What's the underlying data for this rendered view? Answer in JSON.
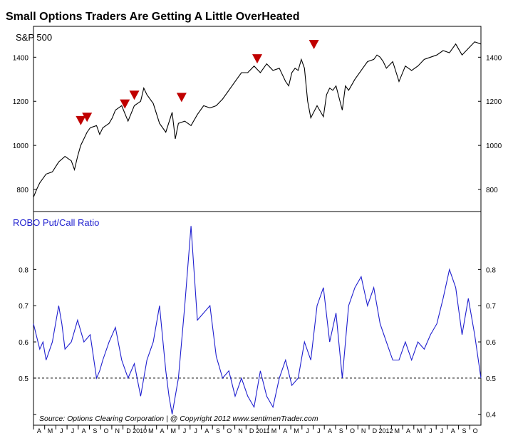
{
  "title": "Small Options Traders Are Getting A Little OverHeated",
  "source_note": "Source:  Options Clearing Corporation  |  @ Copyright 2012  www.sentimenTrader.com",
  "chart_data": [
    {
      "type": "line",
      "title": "S&P 500",
      "y_ticks": [
        800,
        1000,
        1200,
        1400
      ],
      "ylim": [
        700,
        1540
      ],
      "series": [
        {
          "name": "S&P 500",
          "color": "#000000",
          "x": [
            0,
            0.5,
            1,
            2,
            3,
            4,
            5,
            6,
            6.5,
            7,
            7.5,
            8,
            8.5,
            9,
            10,
            10.5,
            11,
            11.5,
            12,
            12.5,
            13,
            14,
            15,
            16,
            17,
            17.5,
            18,
            19,
            20,
            21,
            22,
            22.5,
            23,
            24,
            25,
            26,
            27,
            28,
            29,
            30,
            31,
            32,
            33,
            34,
            35,
            36,
            37,
            38,
            39,
            40,
            40.5,
            41,
            41.5,
            42,
            42.5,
            43,
            43.5,
            44,
            45,
            46,
            46.5,
            47,
            47.5,
            48,
            49,
            49.5,
            50,
            51,
            52,
            53,
            54,
            54.5,
            55,
            55.5,
            56,
            57,
            58,
            59,
            60,
            61,
            62,
            63,
            64,
            65,
            66,
            67,
            68,
            69,
            70,
            71
          ],
          "values": [
            765,
            800,
            830,
            870,
            880,
            925,
            950,
            930,
            890,
            950,
            1000,
            1030,
            1060,
            1080,
            1090,
            1050,
            1080,
            1090,
            1100,
            1125,
            1160,
            1180,
            1110,
            1180,
            1200,
            1260,
            1230,
            1190,
            1100,
            1060,
            1150,
            1030,
            1100,
            1110,
            1090,
            1140,
            1180,
            1170,
            1180,
            1210,
            1250,
            1290,
            1330,
            1330,
            1360,
            1330,
            1370,
            1340,
            1350,
            1290,
            1270,
            1330,
            1350,
            1340,
            1390,
            1350,
            1200,
            1125,
            1180,
            1130,
            1230,
            1260,
            1250,
            1270,
            1160,
            1270,
            1250,
            1300,
            1340,
            1380,
            1390,
            1410,
            1400,
            1380,
            1350,
            1380,
            1290,
            1360,
            1340,
            1360,
            1390,
            1400,
            1410,
            1430,
            1420,
            1460,
            1410,
            1440,
            1470,
            1460
          ]
        },
        {
          "name": "signals",
          "values": [
            1085,
            1100,
            1160,
            1200,
            1190,
            1365,
            1430
          ]
        }
      ]
    },
    {
      "type": "line",
      "title": "ROBO Put/Call Ratio",
      "y_ticks": [
        0.4,
        0.5,
        0.6,
        0.7,
        0.8
      ],
      "y_tick_labels_left": [
        "0.5",
        "0.6",
        "0.7",
        "0.8"
      ],
      "ylim": [
        0.96,
        0.37
      ],
      "reference_line": 0.5,
      "series": [
        {
          "name": "ROBO Put/Call Ratio",
          "color": "#1f1fcf",
          "x": [
            0,
            1,
            1.5,
            2,
            3,
            4,
            4.5,
            5,
            6,
            7,
            8,
            9,
            10,
            10.5,
            11,
            12,
            13,
            14,
            15,
            16,
            17,
            18,
            19,
            20,
            21,
            21.5,
            22,
            23,
            24,
            25,
            26,
            27,
            28,
            29,
            30,
            31,
            32,
            33,
            34,
            35,
            36,
            37,
            38,
            39,
            40,
            41,
            42,
            43,
            44,
            45,
            46,
            47,
            48,
            49,
            50,
            51,
            52,
            53,
            54,
            55,
            56,
            57,
            58,
            59,
            60,
            61,
            62,
            63,
            64,
            65,
            66,
            67,
            68,
            69,
            70,
            71
          ],
          "values": [
            0.65,
            0.58,
            0.6,
            0.55,
            0.6,
            0.7,
            0.65,
            0.58,
            0.6,
            0.66,
            0.6,
            0.62,
            0.5,
            0.52,
            0.55,
            0.6,
            0.64,
            0.55,
            0.5,
            0.54,
            0.45,
            0.55,
            0.6,
            0.7,
            0.52,
            0.45,
            0.4,
            0.5,
            0.7,
            0.92,
            0.66,
            0.68,
            0.7,
            0.56,
            0.5,
            0.52,
            0.45,
            0.5,
            0.45,
            0.42,
            0.52,
            0.45,
            0.42,
            0.5,
            0.55,
            0.48,
            0.5,
            0.6,
            0.55,
            0.7,
            0.75,
            0.6,
            0.68,
            0.5,
            0.7,
            0.75,
            0.78,
            0.7,
            0.75,
            0.65,
            0.6,
            0.55,
            0.55,
            0.6,
            0.55,
            0.6,
            0.58,
            0.62,
            0.65,
            0.72,
            0.8,
            0.75,
            0.62,
            0.72,
            0.62,
            0.5
          ]
        }
      ]
    }
  ],
  "x_axis_labels": [
    "A",
    "M",
    "J",
    "J",
    "A",
    "S",
    "O",
    "N",
    "D",
    "2010",
    "M",
    "A",
    "M",
    "J",
    "J",
    "A",
    "S",
    "O",
    "N",
    "D",
    "2011",
    "M",
    "A",
    "M",
    "J",
    "J",
    "A",
    "S",
    "O",
    "N",
    "D",
    "2012",
    "M",
    "A",
    "M",
    "J",
    "J",
    "A",
    "S",
    "O"
  ]
}
